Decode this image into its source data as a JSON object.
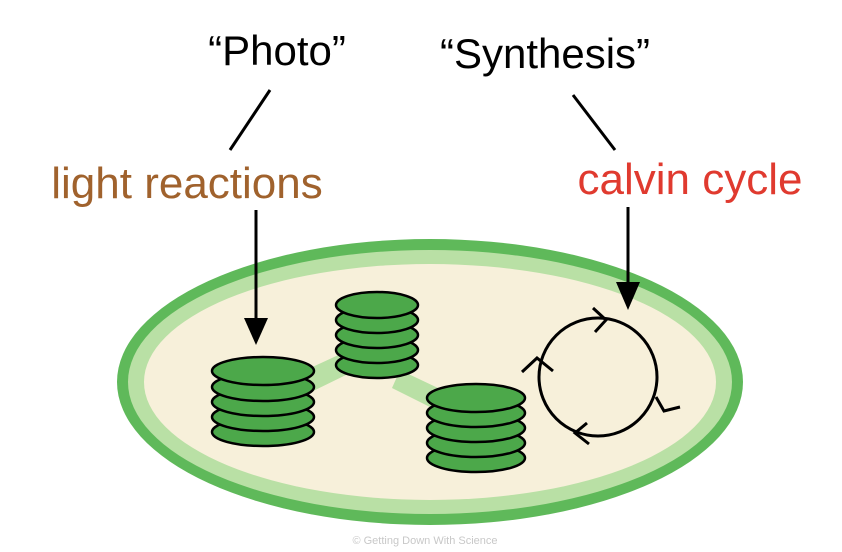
{
  "labels": {
    "photo": "“Photo”",
    "synthesis": "“Synthesis”",
    "light_reactions": "light reactions",
    "calvin_cycle": "calvin cycle",
    "credit": "© Getting Down With Science"
  },
  "colors": {
    "light_reactions": "#a0622d",
    "calvin_cycle": "#e03a2f",
    "membrane_outer": "#5fb95a",
    "membrane_inner": "#b9e0a5",
    "stroma": "#f7f0da",
    "thylakoid": "#4ca84a",
    "lamella": "#b9e0a5",
    "credit": "#c8c8c8"
  }
}
